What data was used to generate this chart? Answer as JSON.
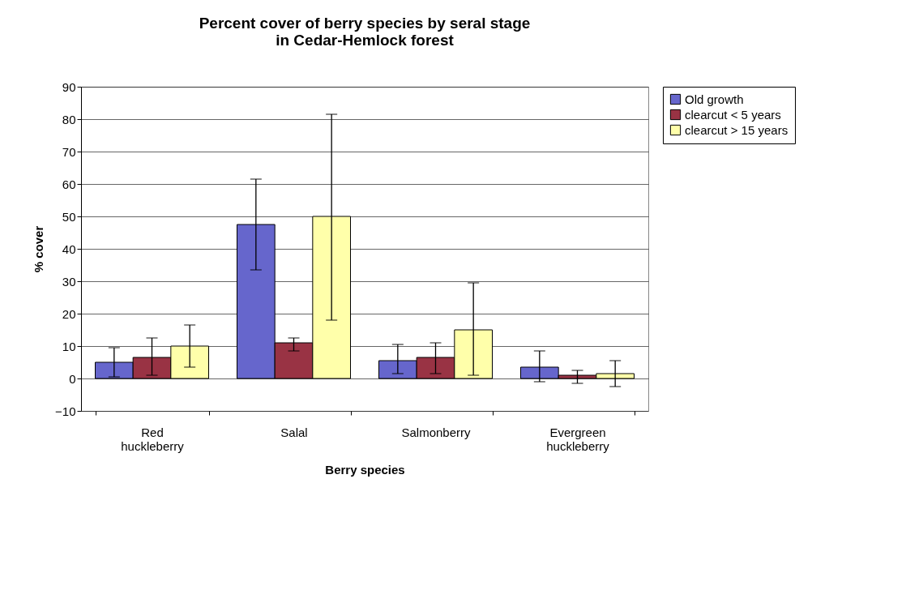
{
  "chart_data": {
    "type": "bar",
    "title": "Percent cover of berry species by seral stage\nin Cedar-Hemlock forest",
    "xlabel": "Berry species",
    "ylabel": "% cover",
    "categories": [
      "Red huckleberry",
      "Salal",
      "Salmonberry",
      "Evergreen huckleberry"
    ],
    "series": [
      {
        "name": "Old growth",
        "color": "#6666cc",
        "values": [
          5,
          47.5,
          5.5,
          3.5
        ],
        "errors": [
          [
            0.5,
            9.5
          ],
          [
            33.5,
            61.5
          ],
          [
            1.5,
            10.5
          ],
          [
            -1,
            8.5
          ]
        ]
      },
      {
        "name": "clearcut < 5 years",
        "color": "#993344",
        "values": [
          6.5,
          11,
          6.5,
          1
        ],
        "errors": [
          [
            1,
            12.5
          ],
          [
            8.5,
            12.5
          ],
          [
            1.5,
            11
          ],
          [
            -1.5,
            2.5
          ]
        ]
      },
      {
        "name": "clearcut > 15 years",
        "color": "#ffffaa",
        "values": [
          10,
          50,
          15,
          1.5
        ],
        "errors": [
          [
            3.5,
            16.5
          ],
          [
            18,
            81.5
          ],
          [
            1,
            29.5
          ],
          [
            -2.5,
            5.5
          ]
        ]
      }
    ],
    "ylim": [
      -10,
      90
    ],
    "yticks": [
      -10,
      0,
      10,
      20,
      30,
      40,
      50,
      60,
      70,
      80,
      90
    ],
    "grid": "y",
    "legend": "right"
  }
}
